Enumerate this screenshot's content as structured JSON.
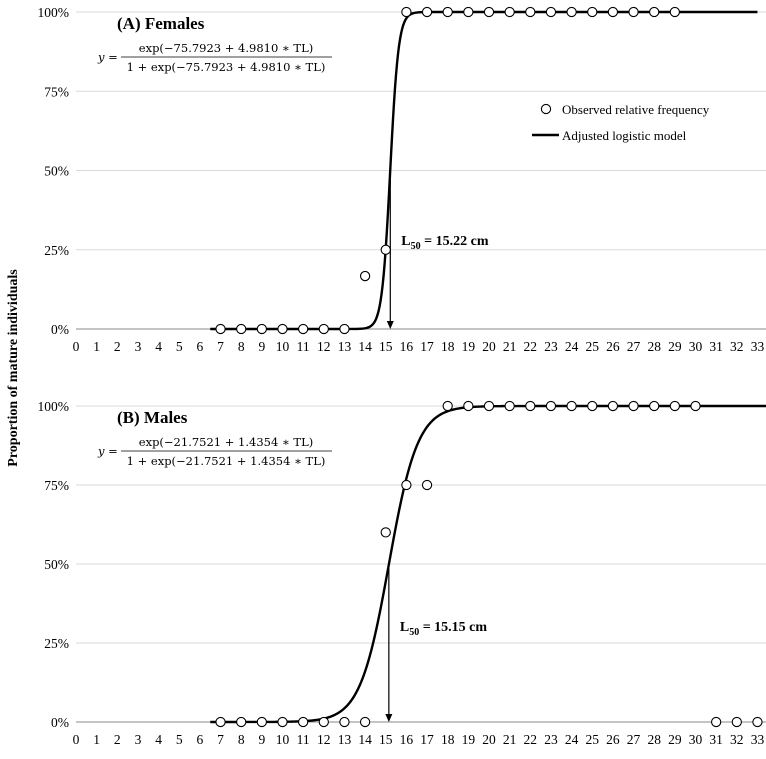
{
  "chart_data": {
    "type": "scatter",
    "ylabel": "Proportion of mature individuals",
    "legend": {
      "position": "top-right",
      "observed_label": "Observed relative frequency",
      "model_label": "Adjusted logistic model"
    },
    "x_ticks": [
      "0",
      "1",
      "2",
      "3",
      "4",
      "5",
      "6",
      "7",
      "8",
      "9",
      "10",
      "11",
      "12",
      "13",
      "14",
      "15",
      "16",
      "17",
      "18",
      "19",
      "20",
      "21",
      "22",
      "23",
      "24",
      "25",
      "26",
      "27",
      "28",
      "29",
      "30",
      "31",
      "32",
      "33"
    ],
    "xlim": [
      0,
      33
    ],
    "y_ticks": [
      "0%",
      "25%",
      "50%",
      "75%",
      "100%"
    ],
    "ylim": [
      0,
      1
    ],
    "grid": "horizontal",
    "panels": [
      {
        "title": "(A) Females",
        "equation": {
          "y": "y =",
          "numerator": "exp(−75.7923 + 4.9810 ∗ TL)",
          "denominator": "1 + exp(−75.7923 + 4.9810 ∗ TL)"
        },
        "model": {
          "a": -75.7923,
          "b": 4.981,
          "x_end": 33
        },
        "l50_label": "L",
        "l50_sub": "50",
        "l50_value": " = 15.22 cm",
        "l50": 15.22,
        "observed": [
          {
            "x": 7,
            "y": 0
          },
          {
            "x": 8,
            "y": 0
          },
          {
            "x": 9,
            "y": 0
          },
          {
            "x": 10,
            "y": 0
          },
          {
            "x": 11,
            "y": 0
          },
          {
            "x": 12,
            "y": 0
          },
          {
            "x": 13,
            "y": 0
          },
          {
            "x": 14,
            "y": 0.167
          },
          {
            "x": 15,
            "y": 0.25
          },
          {
            "x": 16,
            "y": 1
          },
          {
            "x": 17,
            "y": 1
          },
          {
            "x": 18,
            "y": 1
          },
          {
            "x": 19,
            "y": 1
          },
          {
            "x": 20,
            "y": 1
          },
          {
            "x": 21,
            "y": 1
          },
          {
            "x": 22,
            "y": 1
          },
          {
            "x": 23,
            "y": 1
          },
          {
            "x": 24,
            "y": 1
          },
          {
            "x": 25,
            "y": 1
          },
          {
            "x": 26,
            "y": 1
          },
          {
            "x": 27,
            "y": 1
          },
          {
            "x": 28,
            "y": 1
          },
          {
            "x": 29,
            "y": 1
          }
        ]
      },
      {
        "title": "(B) Males",
        "equation": {
          "y": "y =",
          "numerator": "exp(−21.7521 + 1.4354 ∗ TL)",
          "denominator": "1 + exp(−21.7521 + 1.4354 ∗ TL)"
        },
        "model": {
          "a": -21.7521,
          "b": 1.4354,
          "x_end": 33.5
        },
        "l50_label": "L",
        "l50_sub": "50",
        "l50_value": " = 15.15 cm",
        "l50": 15.15,
        "observed": [
          {
            "x": 7,
            "y": 0
          },
          {
            "x": 8,
            "y": 0
          },
          {
            "x": 9,
            "y": 0
          },
          {
            "x": 10,
            "y": 0
          },
          {
            "x": 11,
            "y": 0
          },
          {
            "x": 12,
            "y": 0
          },
          {
            "x": 13,
            "y": 0
          },
          {
            "x": 14,
            "y": 0
          },
          {
            "x": 15,
            "y": 0.6
          },
          {
            "x": 16,
            "y": 0.75
          },
          {
            "x": 17,
            "y": 0.75
          },
          {
            "x": 18,
            "y": 1
          },
          {
            "x": 19,
            "y": 1
          },
          {
            "x": 20,
            "y": 1
          },
          {
            "x": 21,
            "y": 1
          },
          {
            "x": 22,
            "y": 1
          },
          {
            "x": 23,
            "y": 1
          },
          {
            "x": 24,
            "y": 1
          },
          {
            "x": 25,
            "y": 1
          },
          {
            "x": 26,
            "y": 1
          },
          {
            "x": 27,
            "y": 1
          },
          {
            "x": 28,
            "y": 1
          },
          {
            "x": 29,
            "y": 1
          },
          {
            "x": 30,
            "y": 1
          },
          {
            "x": 31,
            "y": 0
          },
          {
            "x": 32,
            "y": 0
          },
          {
            "x": 33,
            "y": 0
          }
        ]
      }
    ]
  }
}
